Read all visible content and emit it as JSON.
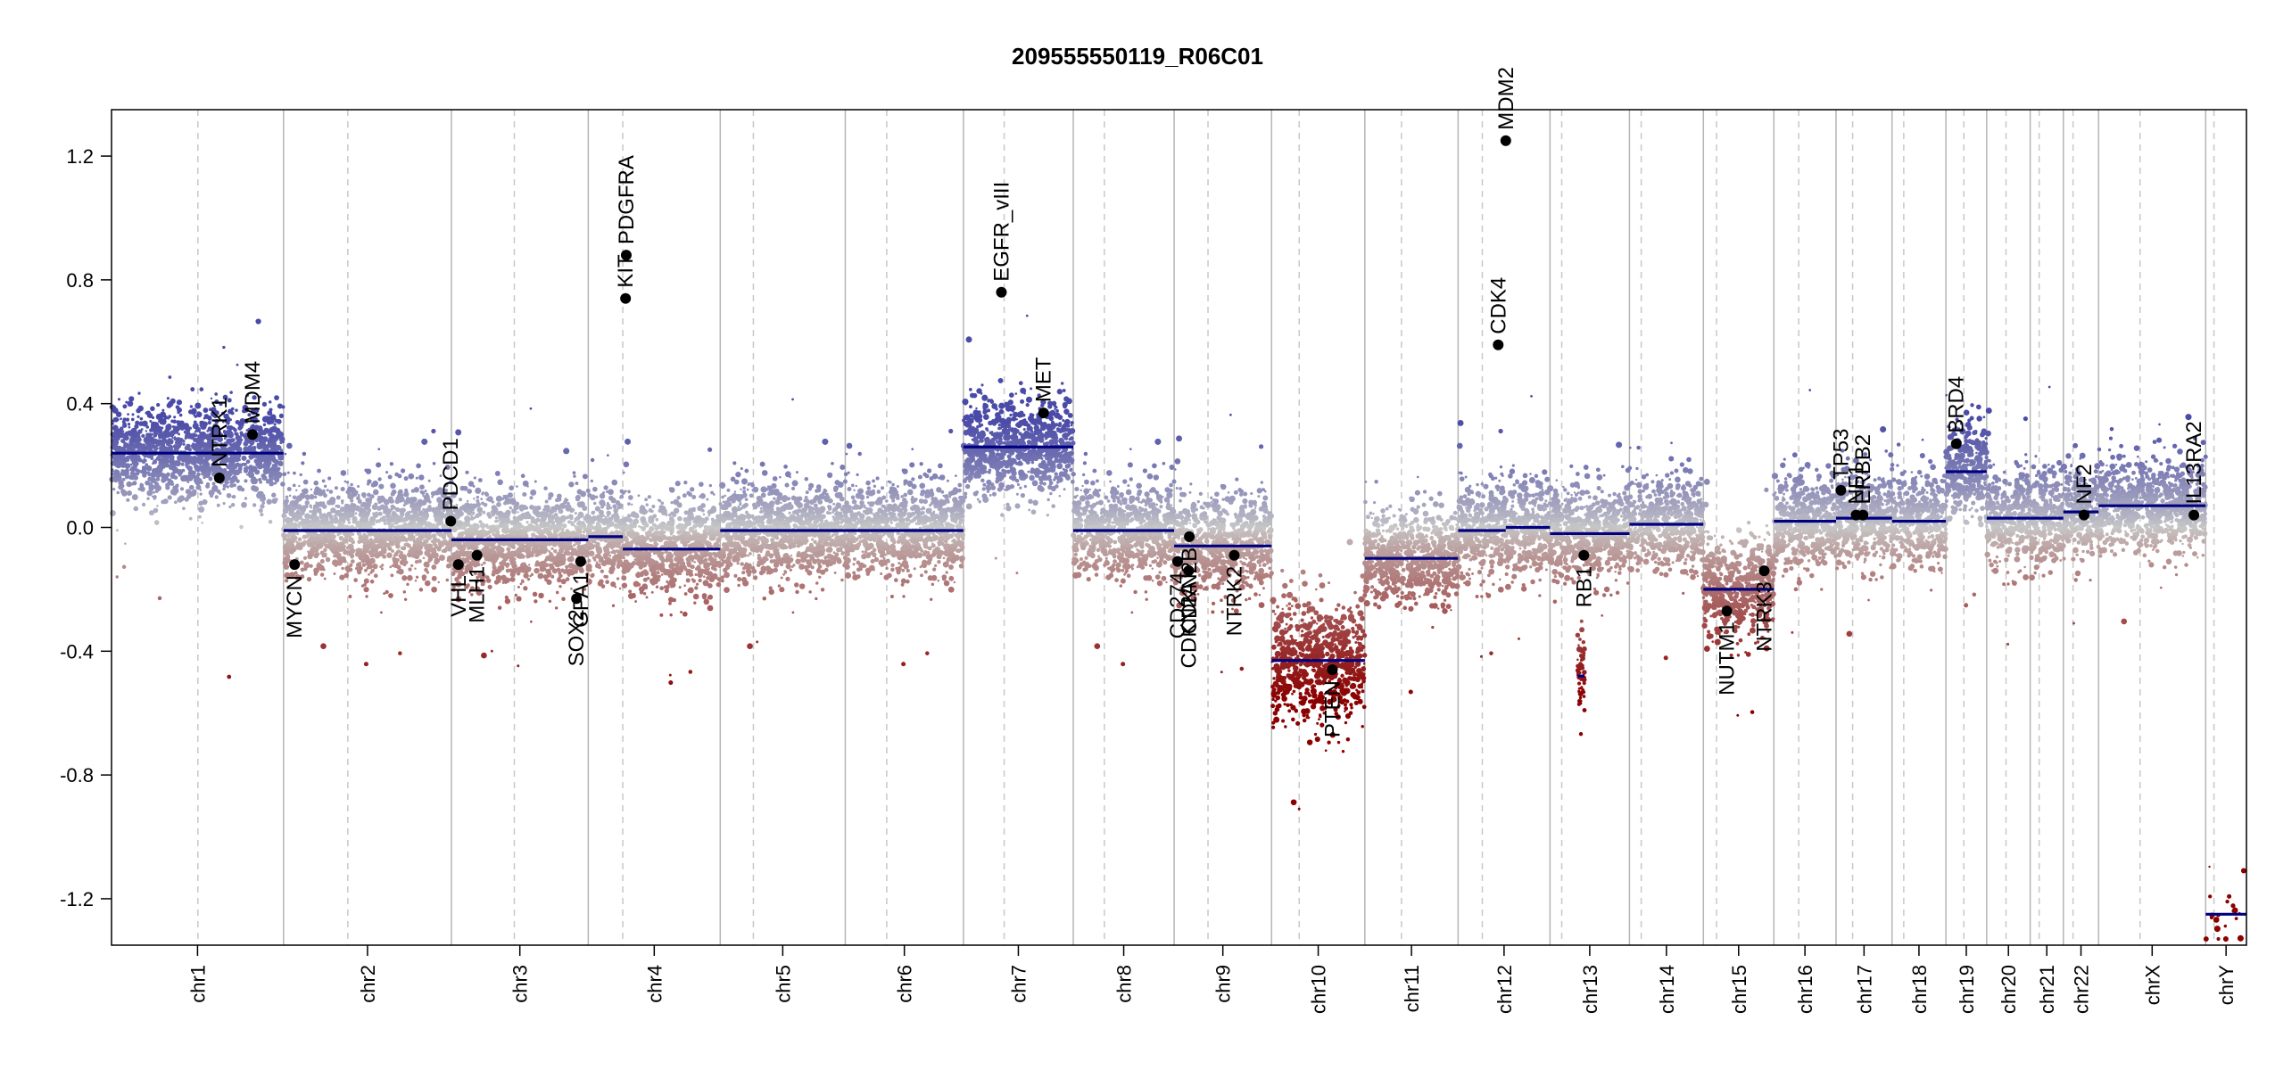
{
  "chart_data": {
    "type": "scatter",
    "title": "209555550119_R06C01",
    "xlabel": "",
    "ylabel": "",
    "ylim": [
      -1.35,
      1.35
    ],
    "y_ticks": [
      1.2,
      0.8,
      0.4,
      0.0,
      -0.4,
      -0.8,
      -1.2
    ],
    "y_tick_labels": [
      "1.2",
      "0.8",
      "0.4",
      "0.0",
      "-0.4",
      "-0.8",
      "-1.2"
    ],
    "colors": {
      "gain": "#4a4aa8",
      "neutral": "#c8c8c8",
      "loss": "#8b0000",
      "segment": "#000080",
      "divider": "#b5b5b5",
      "centromere": "#c8c8c8"
    },
    "chromosomes": [
      {
        "name": "chr1",
        "length": 249
      },
      {
        "name": "chr2",
        "length": 243
      },
      {
        "name": "chr3",
        "length": 198
      },
      {
        "name": "chr4",
        "length": 191
      },
      {
        "name": "chr5",
        "length": 181
      },
      {
        "name": "chr6",
        "length": 171
      },
      {
        "name": "chr7",
        "length": 159
      },
      {
        "name": "chr8",
        "length": 146
      },
      {
        "name": "chr9",
        "length": 141
      },
      {
        "name": "chr10",
        "length": 135
      },
      {
        "name": "chr11",
        "length": 135
      },
      {
        "name": "chr12",
        "length": 133
      },
      {
        "name": "chr13",
        "length": 115
      },
      {
        "name": "chr14",
        "length": 107
      },
      {
        "name": "chr15",
        "length": 102
      },
      {
        "name": "chr16",
        "length": 90
      },
      {
        "name": "chr17",
        "length": 81
      },
      {
        "name": "chr18",
        "length": 78
      },
      {
        "name": "chr19",
        "length": 59
      },
      {
        "name": "chr20",
        "length": 63
      },
      {
        "name": "chr21",
        "length": 48
      },
      {
        "name": "chr22",
        "length": 51
      },
      {
        "name": "chrX",
        "length": 155
      },
      {
        "name": "chrY",
        "length": 59
      }
    ],
    "centromeres": [
      {
        "chr": "chr1",
        "pos": 125
      },
      {
        "chr": "chr2",
        "pos": 93
      },
      {
        "chr": "chr3",
        "pos": 91
      },
      {
        "chr": "chr4",
        "pos": 50
      },
      {
        "chr": "chr5",
        "pos": 48
      },
      {
        "chr": "chr6",
        "pos": 60
      },
      {
        "chr": "chr7",
        "pos": 59
      },
      {
        "chr": "chr8",
        "pos": 45
      },
      {
        "chr": "chr9",
        "pos": 49
      },
      {
        "chr": "chr10",
        "pos": 40
      },
      {
        "chr": "chr11",
        "pos": 53
      },
      {
        "chr": "chr12",
        "pos": 35
      },
      {
        "chr": "chr13",
        "pos": 17
      },
      {
        "chr": "chr14",
        "pos": 17
      },
      {
        "chr": "chr15",
        "pos": 19
      },
      {
        "chr": "chr16",
        "pos": 36
      },
      {
        "chr": "chr17",
        "pos": 24
      },
      {
        "chr": "chr18",
        "pos": 17
      },
      {
        "chr": "chr19",
        "pos": 26
      },
      {
        "chr": "chr20",
        "pos": 28
      },
      {
        "chr": "chr21",
        "pos": 13
      },
      {
        "chr": "chr22",
        "pos": 14
      },
      {
        "chr": "chrX",
        "pos": 60
      },
      {
        "chr": "chrY",
        "pos": 12
      }
    ],
    "segments": [
      {
        "chr": "chr1",
        "start": 0,
        "end": 249,
        "value": 0.24
      },
      {
        "chr": "chr2",
        "start": 0,
        "end": 243,
        "value": -0.01
      },
      {
        "chr": "chr3",
        "start": 0,
        "end": 198,
        "value": -0.04
      },
      {
        "chr": "chr4",
        "start": 0,
        "end": 50,
        "value": -0.03
      },
      {
        "chr": "chr4",
        "start": 50,
        "end": 191,
        "value": -0.07
      },
      {
        "chr": "chr5",
        "start": 0,
        "end": 181,
        "value": -0.01
      },
      {
        "chr": "chr6",
        "start": 0,
        "end": 171,
        "value": -0.01
      },
      {
        "chr": "chr7",
        "start": 0,
        "end": 159,
        "value": 0.26
      },
      {
        "chr": "chr8",
        "start": 0,
        "end": 146,
        "value": -0.01
      },
      {
        "chr": "chr9",
        "start": 0,
        "end": 141,
        "value": -0.06
      },
      {
        "chr": "chr10",
        "start": 0,
        "end": 135,
        "value": -0.43
      },
      {
        "chr": "chr11",
        "start": 0,
        "end": 135,
        "value": -0.1
      },
      {
        "chr": "chr12",
        "start": 0,
        "end": 69,
        "value": -0.01
      },
      {
        "chr": "chr12",
        "start": 69,
        "end": 133,
        "value": 0.0
      },
      {
        "chr": "chr13",
        "start": 0,
        "end": 20,
        "value": -0.02
      },
      {
        "chr": "chr13",
        "start": 20,
        "end": 115,
        "value": -0.02
      },
      {
        "chr": "chr14",
        "start": 0,
        "end": 107,
        "value": 0.01
      },
      {
        "chr": "chr15",
        "start": 0,
        "end": 102,
        "value": -0.2
      },
      {
        "chr": "chr16",
        "start": 0,
        "end": 90,
        "value": 0.02
      },
      {
        "chr": "chr17",
        "start": 0,
        "end": 81,
        "value": 0.03
      },
      {
        "chr": "chr18",
        "start": 0,
        "end": 78,
        "value": 0.02
      },
      {
        "chr": "chr19",
        "start": 0,
        "end": 59,
        "value": 0.18
      },
      {
        "chr": "chr20",
        "start": 0,
        "end": 63,
        "value": 0.03
      },
      {
        "chr": "chr21",
        "start": 0,
        "end": 48,
        "value": 0.03
      },
      {
        "chr": "chr22",
        "start": 0,
        "end": 51,
        "value": 0.05
      },
      {
        "chr": "chrX",
        "start": 0,
        "end": 155,
        "value": 0.07
      },
      {
        "chr": "chrY",
        "start": 0,
        "end": 59,
        "value": -1.25
      }
    ],
    "focal_segments": [
      {
        "chr": "chr13",
        "start": 40,
        "end": 50,
        "value": -0.48
      }
    ],
    "genes": [
      {
        "name": "NTRK1",
        "chr": "chr1",
        "pos": 156,
        "value": 0.16,
        "label_side": "above"
      },
      {
        "name": "MDM4",
        "chr": "chr1",
        "pos": 204,
        "value": 0.3,
        "label_side": "above"
      },
      {
        "name": "MYCN",
        "chr": "chr2",
        "pos": 16,
        "value": -0.12,
        "label_side": "below"
      },
      {
        "name": "PDCD1",
        "chr": "chr2",
        "pos": 242,
        "value": 0.02,
        "label_side": "above"
      },
      {
        "name": "VHL",
        "chr": "chr3",
        "pos": 10,
        "value": -0.12,
        "label_side": "below"
      },
      {
        "name": "MLH1",
        "chr": "chr3",
        "pos": 37,
        "value": -0.09,
        "label_side": "below"
      },
      {
        "name": "SOX2",
        "chr": "chr3",
        "pos": 181,
        "value": -0.23,
        "label_side": "below"
      },
      {
        "name": "GPA1",
        "chr": "chr3",
        "pos": 187,
        "value": -0.11,
        "label_side": "below"
      },
      {
        "name": "PDGFRA",
        "chr": "chr4",
        "pos": 55,
        "value": 0.88,
        "label_side": "above"
      },
      {
        "name": "KIT",
        "chr": "chr4",
        "pos": 54,
        "value": 0.74,
        "label_side": "above"
      },
      {
        "name": "EGFR_vIII",
        "chr": "chr7",
        "pos": 55,
        "value": 0.76,
        "label_side": "above"
      },
      {
        "name": "MET",
        "chr": "chr7",
        "pos": 116,
        "value": 0.37,
        "label_side": "above"
      },
      {
        "name": "CD274",
        "chr": "chr9",
        "pos": 5,
        "value": -0.11,
        "label_side": "below"
      },
      {
        "name": "CDKN2A",
        "chr": "chr9",
        "pos": 21,
        "value": -0.14,
        "label_side": "below"
      },
      {
        "name": "CDKN2B",
        "chr": "chr9",
        "pos": 22,
        "value": -0.03,
        "label_side": "below"
      },
      {
        "name": "NTRK2",
        "chr": "chr9",
        "pos": 87,
        "value": -0.09,
        "label_side": "below"
      },
      {
        "name": "PTEN",
        "chr": "chr10",
        "pos": 88,
        "value": -0.46,
        "label_side": "below"
      },
      {
        "name": "CDK4",
        "chr": "chr12",
        "pos": 58,
        "value": 0.59,
        "label_side": "above"
      },
      {
        "name": "MDM2",
        "chr": "chr12",
        "pos": 69,
        "value": 1.25,
        "label_side": "above"
      },
      {
        "name": "RB1",
        "chr": "chr13",
        "pos": 49,
        "value": -0.09,
        "label_side": "below"
      },
      {
        "name": "NUTM1",
        "chr": "chr15",
        "pos": 34,
        "value": -0.27,
        "label_side": "below"
      },
      {
        "name": "NTRK3",
        "chr": "chr15",
        "pos": 88,
        "value": -0.14,
        "label_side": "below"
      },
      {
        "name": "TP53",
        "chr": "chr17",
        "pos": 7,
        "value": 0.12,
        "label_side": "above"
      },
      {
        "name": "NF1",
        "chr": "chr17",
        "pos": 29,
        "value": 0.04,
        "label_side": "above"
      },
      {
        "name": "ERBB2",
        "chr": "chr17",
        "pos": 39,
        "value": 0.04,
        "label_side": "above"
      },
      {
        "name": "BRD4",
        "chr": "chr19",
        "pos": 15,
        "value": 0.27,
        "label_side": "above"
      },
      {
        "name": "NF2",
        "chr": "chr22",
        "pos": 30,
        "value": 0.04,
        "label_side": "above"
      },
      {
        "name": "IL13RA2",
        "chr": "chrX",
        "pos": 138,
        "value": 0.04,
        "label_side": "above"
      }
    ]
  }
}
